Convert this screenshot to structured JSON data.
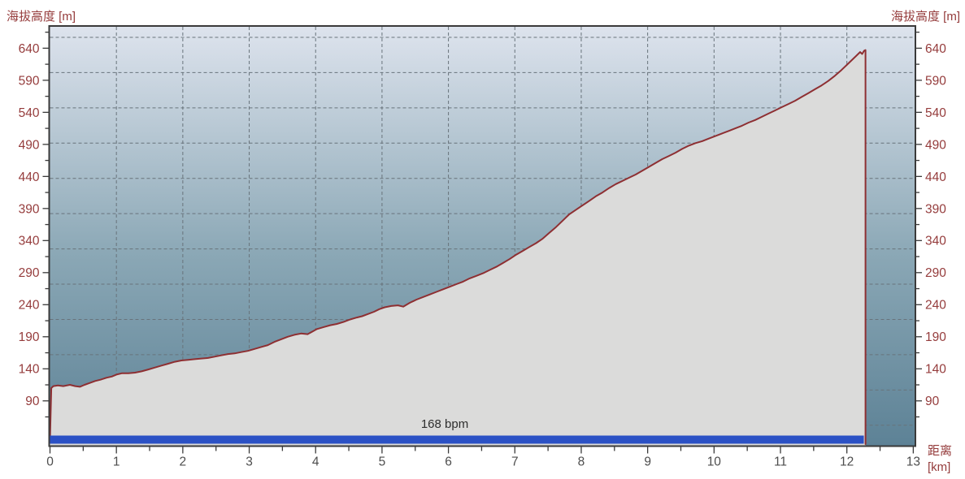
{
  "chart_data": {
    "type": "area",
    "title_left": "海拔高度 [m]",
    "title_right": "海拔高度 [m]",
    "x_axis_title_line1": "距离",
    "x_axis_title_line2": "[km]",
    "x_range": [
      0,
      13.02
    ],
    "y_range": [
      20.7,
      673.4
    ],
    "x_ticks": [
      0,
      1,
      2,
      3,
      4,
      5,
      6,
      7,
      8,
      9,
      10,
      11,
      12,
      13
    ],
    "x_minor_ticks": [
      0.5,
      1.5,
      2.5,
      3.5,
      4.5,
      5.5,
      6.5,
      7.5,
      8.5,
      9.5,
      10.5,
      11.5,
      12.5
    ],
    "y_ticks": [
      90,
      140,
      190,
      240,
      290,
      340,
      390,
      440,
      490,
      540,
      590,
      640
    ],
    "y_minor_ticks": [
      65,
      115,
      165,
      215,
      265,
      315,
      365,
      415,
      465,
      515,
      565,
      615,
      665
    ],
    "grid": true,
    "grid_y_values": [
      52,
      107,
      162,
      217,
      272,
      327,
      382,
      437,
      492,
      547,
      602,
      657
    ],
    "grid_x_values": [
      1,
      2,
      3,
      4,
      5,
      6,
      7,
      8,
      9,
      10,
      11,
      12
    ],
    "series": [
      {
        "name": "elevation-profile",
        "x": [
          0,
          0.02,
          0.05,
          0.12,
          0.2,
          0.3,
          0.38,
          0.45,
          0.52,
          0.6,
          0.68,
          0.76,
          0.85,
          0.93,
          1,
          1.08,
          1.18,
          1.28,
          1.38,
          1.48,
          1.58,
          1.68,
          1.78,
          1.88,
          1.98,
          2.08,
          2.18,
          2.28,
          2.38,
          2.48,
          2.58,
          2.68,
          2.78,
          2.88,
          2.98,
          3.08,
          3.18,
          3.28,
          3.38,
          3.48,
          3.58,
          3.68,
          3.78,
          3.88,
          3.95,
          4.02,
          4.12,
          4.22,
          4.32,
          4.42,
          4.52,
          4.62,
          4.7,
          4.78,
          4.88,
          4.96,
          5.04,
          5.14,
          5.24,
          5.32,
          5.42,
          5.52,
          5.62,
          5.72,
          5.82,
          5.92,
          6.02,
          6.12,
          6.22,
          6.32,
          6.42,
          6.52,
          6.62,
          6.72,
          6.82,
          6.92,
          7.02,
          7.12,
          7.22,
          7.32,
          7.42,
          7.52,
          7.62,
          7.72,
          7.82,
          7.92,
          8.02,
          8.12,
          8.22,
          8.32,
          8.42,
          8.52,
          8.62,
          8.72,
          8.82,
          8.92,
          9.02,
          9.12,
          9.22,
          9.32,
          9.42,
          9.52,
          9.62,
          9.72,
          9.82,
          9.92,
          10.02,
          10.12,
          10.22,
          10.32,
          10.42,
          10.52,
          10.62,
          10.72,
          10.82,
          10.92,
          11.02,
          11.12,
          11.22,
          11.32,
          11.42,
          11.52,
          11.62,
          11.72,
          11.82,
          11.92,
          12,
          12.08,
          12.15,
          12.2,
          12.23,
          12.26,
          12.28
        ],
        "y": [
          30,
          110,
          113,
          114,
          113,
          115,
          113,
          112,
          115,
          118,
          121,
          123,
          126,
          128,
          131,
          133,
          133,
          134,
          136,
          139,
          142,
          145,
          148,
          151,
          153,
          154,
          155,
          156,
          157,
          159,
          161,
          163,
          164,
          166,
          168,
          171,
          174,
          177,
          182,
          186,
          190,
          193,
          195,
          194,
          198,
          202,
          205,
          208,
          210,
          213,
          217,
          220,
          222,
          225,
          229,
          233,
          236,
          238,
          239,
          237,
          243,
          248,
          252,
          256,
          260,
          264,
          268,
          272,
          276,
          281,
          285,
          289,
          294,
          299,
          305,
          311,
          318,
          324,
          330,
          336,
          343,
          352,
          361,
          371,
          381,
          388,
          395,
          402,
          409,
          415,
          422,
          428,
          433,
          438,
          443,
          449,
          455,
          461,
          467,
          472,
          477,
          483,
          488,
          492,
          495,
          499,
          503,
          507,
          511,
          515,
          519,
          524,
          528,
          533,
          538,
          543,
          548,
          553,
          558,
          564,
          570,
          576,
          582,
          589,
          597,
          606,
          614,
          622,
          629,
          634,
          631,
          636,
          637
        ],
        "end_km": 12.28,
        "max_elevation": 637,
        "start_elevation": 30
      }
    ],
    "heart_rate_bar": {
      "label": "168 bpm",
      "x_start": 0,
      "x_end": 12.28,
      "color": "#2b51c5",
      "label_color": "#2e2e2e"
    },
    "colors": {
      "plot_bg_top": "#dde3ed",
      "plot_bg_mid": "#8aa7b5",
      "plot_bg_bottom": "#5d8296",
      "grid": "#68737b",
      "border": "#3a3a3a",
      "tick": "#3a3a3a",
      "y_tick_label": "#953c3c",
      "x_tick_label": "#4d4d4d",
      "axis_title": "#953c3c",
      "line": "#8e2f32",
      "area_fill": "#dbdbda",
      "outer_background": "#ffffff"
    }
  }
}
